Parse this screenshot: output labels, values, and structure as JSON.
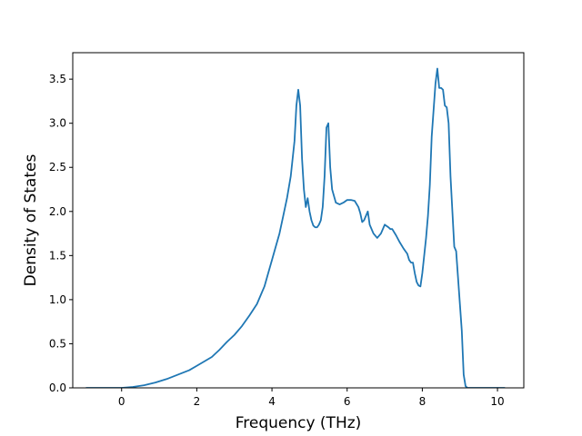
{
  "chart_data": {
    "type": "line",
    "xlabel": "Frequency (THz)",
    "ylabel": "Density of States",
    "xlim": [
      -1.3,
      10.7
    ],
    "ylim": [
      0,
      3.5
    ],
    "x_ticks": [
      "0",
      "2",
      "4",
      "6",
      "8",
      "10"
    ],
    "x_tick_values": [
      0,
      2,
      4,
      6,
      8,
      10
    ],
    "y_ticks": [
      "0.0",
      "0.5",
      "1.0",
      "1.5",
      "2.0",
      "2.5",
      "3.0",
      "3.5"
    ],
    "y_tick_values": [
      0,
      0.5,
      1.0,
      1.5,
      2.0,
      2.5,
      3.0,
      3.5
    ],
    "grid": false,
    "line_color": "#1f77b4",
    "series": [
      {
        "x": [
          -0.95,
          -0.5,
          0.0,
          0.3,
          0.6,
          0.9,
          1.2,
          1.5,
          1.8,
          2.0,
          2.2,
          2.4,
          2.6,
          2.8,
          3.0,
          3.2,
          3.4,
          3.6,
          3.7,
          3.8,
          3.9,
          4.0,
          4.1,
          4.2,
          4.3,
          4.4,
          4.5,
          4.6,
          4.65,
          4.7,
          4.75,
          4.8,
          4.85,
          4.9,
          4.95,
          5.0,
          5.05,
          5.1,
          5.15,
          5.2,
          5.25,
          5.3,
          5.35,
          5.4,
          5.45,
          5.5,
          5.55,
          5.6,
          5.7,
          5.8,
          5.9,
          6.0,
          6.1,
          6.2,
          6.3,
          6.35,
          6.4,
          6.45,
          6.5,
          6.55,
          6.6,
          6.7,
          6.8,
          6.9,
          7.0,
          7.1,
          7.15,
          7.2,
          7.3,
          7.4,
          7.5,
          7.55,
          7.6,
          7.65,
          7.7,
          7.75,
          7.8,
          7.85,
          7.9,
          7.95,
          8.0,
          8.05,
          8.1,
          8.15,
          8.2,
          8.25,
          8.3,
          8.35,
          8.4,
          8.45,
          8.5,
          8.55,
          8.6,
          8.65,
          8.7,
          8.75,
          8.8,
          8.85,
          8.9,
          8.95,
          9.0,
          9.05,
          9.1,
          9.15,
          9.2,
          9.25,
          9.3,
          9.5,
          9.8,
          10.2
        ],
        "y": [
          0.0,
          0.0,
          0.0,
          0.01,
          0.03,
          0.06,
          0.1,
          0.15,
          0.2,
          0.25,
          0.3,
          0.35,
          0.43,
          0.52,
          0.6,
          0.7,
          0.82,
          0.95,
          1.05,
          1.15,
          1.3,
          1.45,
          1.6,
          1.75,
          1.95,
          2.15,
          2.4,
          2.8,
          3.2,
          3.38,
          3.2,
          2.6,
          2.25,
          2.05,
          2.15,
          2.0,
          1.9,
          1.84,
          1.82,
          1.82,
          1.85,
          1.9,
          2.05,
          2.4,
          2.95,
          3.0,
          2.5,
          2.25,
          2.1,
          2.08,
          2.1,
          2.13,
          2.13,
          2.12,
          2.05,
          1.98,
          1.88,
          1.9,
          1.95,
          2.0,
          1.85,
          1.75,
          1.7,
          1.75,
          1.85,
          1.82,
          1.8,
          1.8,
          1.73,
          1.65,
          1.58,
          1.55,
          1.52,
          1.45,
          1.42,
          1.42,
          1.3,
          1.2,
          1.16,
          1.15,
          1.3,
          1.5,
          1.7,
          1.95,
          2.3,
          2.85,
          3.15,
          3.45,
          3.62,
          3.4,
          3.4,
          3.38,
          3.2,
          3.18,
          3.0,
          2.4,
          2.0,
          1.6,
          1.55,
          1.25,
          0.95,
          0.65,
          0.15,
          0.02,
          0.0,
          0.0,
          0.0,
          0.0,
          0.0,
          0.0
        ]
      }
    ]
  }
}
